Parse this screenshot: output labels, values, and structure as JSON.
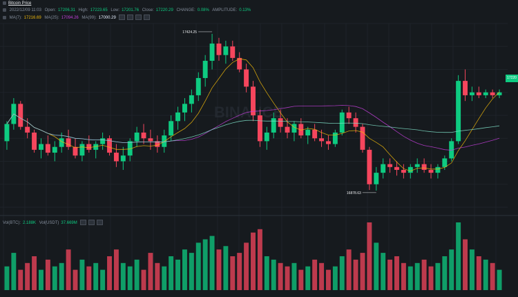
{
  "legend": {
    "title": "Bitcoin Price",
    "date": "2022/12/09 11:03",
    "open_label": "Open:",
    "open": "17206.31",
    "high_label": "High:",
    "high": "17223.65",
    "low_label": "Low:",
    "low": "17201.76",
    "close_label": "Close:",
    "close": "17220.29",
    "change_label": "CHANGE:",
    "change": "0.08%",
    "amp_label": "AMPLITUDE:",
    "amp": "0.13%",
    "ma7_label": "MA(7):",
    "ma7": "17216.69",
    "ma25_label": "MA(25):",
    "ma25": "17094.26",
    "ma99_label": "MA(99):",
    "ma99": "17000.29",
    "vol_label": "Vol(BTC):",
    "vol_btc": "2.188K",
    "vol_usdt_label": "Vol(USDT)",
    "vol_usdt": "37.669M"
  },
  "current_price_tag": "17220",
  "watermark": "BINANCE",
  "chart_data": {
    "type": "candlestick",
    "y_range_hint": "approx 16820–17460 (tick labels illegible)",
    "annotations": [
      {
        "text": "17424.25",
        "kind": "session-high"
      },
      {
        "text": "16878.63",
        "kind": "session-low"
      }
    ],
    "moving_averages": [
      "MA(7)",
      "MA(25)",
      "MA(99)"
    ],
    "colors": {
      "up": "#0ecb81",
      "down": "#f6465d",
      "ma7": "#f0b90b",
      "ma25": "#c33fda",
      "ma99": "#7fe0c8"
    },
    "candles": [
      [
        17050,
        17120,
        17020,
        17110
      ],
      [
        17110,
        17200,
        17090,
        17180
      ],
      [
        17180,
        17190,
        17090,
        17100
      ],
      [
        17100,
        17130,
        17060,
        17080
      ],
      [
        17080,
        17090,
        17010,
        17020
      ],
      [
        17020,
        17060,
        16990,
        17040
      ],
      [
        17040,
        17070,
        17000,
        17010
      ],
      [
        17010,
        17050,
        16980,
        17030
      ],
      [
        17030,
        17080,
        17010,
        17060
      ],
      [
        17060,
        17090,
        17020,
        17030
      ],
      [
        17030,
        17060,
        16990,
        17000
      ],
      [
        17000,
        17050,
        16980,
        17040
      ],
      [
        17040,
        17070,
        17010,
        17020
      ],
      [
        17020,
        17050,
        16990,
        17040
      ],
      [
        17040,
        17080,
        17020,
        17060
      ],
      [
        17060,
        17070,
        17000,
        17010
      ],
      [
        17010,
        17040,
        16960,
        16980
      ],
      [
        16980,
        17030,
        16950,
        17000
      ],
      [
        17000,
        17060,
        16980,
        17050
      ],
      [
        17050,
        17100,
        17030,
        17080
      ],
      [
        17080,
        17110,
        17040,
        17060
      ],
      [
        17060,
        17090,
        17020,
        17050
      ],
      [
        17050,
        17070,
        17010,
        17030
      ],
      [
        17030,
        17090,
        17010,
        17070
      ],
      [
        17070,
        17140,
        17050,
        17120
      ],
      [
        17120,
        17170,
        17090,
        17150
      ],
      [
        17150,
        17200,
        17120,
        17180
      ],
      [
        17180,
        17230,
        17150,
        17210
      ],
      [
        17210,
        17290,
        17190,
        17270
      ],
      [
        17270,
        17350,
        17240,
        17330
      ],
      [
        17330,
        17424,
        17300,
        17390
      ],
      [
        17390,
        17410,
        17330,
        17350
      ],
      [
        17350,
        17400,
        17320,
        17380
      ],
      [
        17380,
        17400,
        17330,
        17340
      ],
      [
        17340,
        17360,
        17290,
        17300
      ],
      [
        17300,
        17320,
        17220,
        17240
      ],
      [
        17240,
        17260,
        17120,
        17140
      ],
      [
        17140,
        17160,
        17030,
        17050
      ],
      [
        17050,
        17100,
        17020,
        17080
      ],
      [
        17080,
        17150,
        17060,
        17130
      ],
      [
        17130,
        17160,
        17080,
        17100
      ],
      [
        17100,
        17130,
        17060,
        17080
      ],
      [
        17080,
        17120,
        17050,
        17110
      ],
      [
        17110,
        17130,
        17060,
        17070
      ],
      [
        17070,
        17100,
        17040,
        17090
      ],
      [
        17090,
        17110,
        17050,
        17060
      ],
      [
        17060,
        17090,
        17030,
        17050
      ],
      [
        17050,
        17070,
        17020,
        17040
      ],
      [
        17040,
        17090,
        17030,
        17080
      ],
      [
        17080,
        17160,
        17070,
        17150
      ],
      [
        17150,
        17170,
        17110,
        17130
      ],
      [
        17130,
        17150,
        17080,
        17100
      ],
      [
        17100,
        17110,
        17010,
        17020
      ],
      [
        17020,
        17030,
        16880,
        16900
      ],
      [
        16900,
        16960,
        16878,
        16940
      ],
      [
        16940,
        16990,
        16920,
        16970
      ],
      [
        16970,
        16990,
        16940,
        16960
      ],
      [
        16960,
        16980,
        16930,
        16950
      ],
      [
        16950,
        16970,
        16920,
        16940
      ],
      [
        16940,
        16970,
        16920,
        16960
      ],
      [
        16960,
        16990,
        16940,
        16970
      ],
      [
        16970,
        16990,
        16940,
        16950
      ],
      [
        16950,
        16970,
        16920,
        16940
      ],
      [
        16940,
        16970,
        16920,
        16960
      ],
      [
        16960,
        17000,
        16950,
        16990
      ],
      [
        16990,
        17060,
        16980,
        17050
      ],
      [
        17050,
        17280,
        17040,
        17260
      ],
      [
        17260,
        17300,
        17190,
        17210
      ],
      [
        17210,
        17240,
        17190,
        17220
      ],
      [
        17220,
        17240,
        17200,
        17210
      ],
      [
        17210,
        17230,
        17200,
        17220
      ],
      [
        17220,
        17230,
        17200,
        17210
      ],
      [
        17210,
        17230,
        17200,
        17220
      ]
    ],
    "volume": [
      0.35,
      0.55,
      0.3,
      0.4,
      0.5,
      0.3,
      0.45,
      0.35,
      0.4,
      0.6,
      0.3,
      0.45,
      0.35,
      0.4,
      0.3,
      0.5,
      0.6,
      0.4,
      0.35,
      0.45,
      0.3,
      0.55,
      0.4,
      0.35,
      0.5,
      0.45,
      0.6,
      0.55,
      0.7,
      0.75,
      0.8,
      0.6,
      0.65,
      0.5,
      0.55,
      0.7,
      0.85,
      0.9,
      0.5,
      0.45,
      0.4,
      0.35,
      0.4,
      0.3,
      0.35,
      0.45,
      0.4,
      0.3,
      0.35,
      0.5,
      0.6,
      0.45,
      0.55,
      1.0,
      0.7,
      0.55,
      0.45,
      0.5,
      0.4,
      0.35,
      0.4,
      0.45,
      0.35,
      0.4,
      0.5,
      0.6,
      1.0,
      0.75,
      0.6,
      0.5,
      0.45,
      0.4,
      0.3
    ]
  }
}
